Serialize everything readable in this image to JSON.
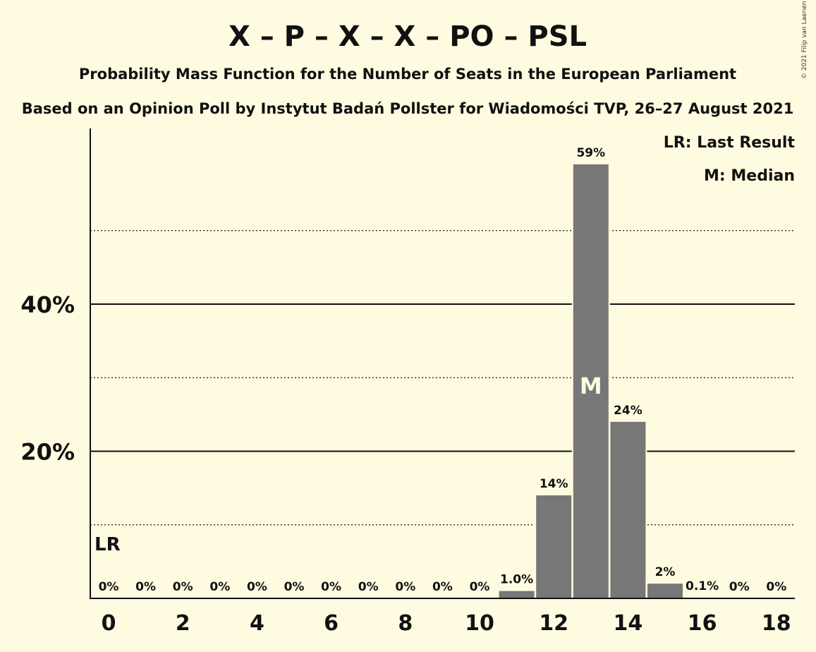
{
  "chart_data": {
    "type": "bar",
    "title": "X – P – X – X – PO – PSL",
    "subtitle": "Probability Mass Function for the Number of Seats in the European Parliament",
    "subtitle2": "Based on an Opinion Poll by Instytut Badań Pollster for Wiadomości TVP, 26–27 August 2021",
    "copyright": "© 2021 Filip van Laenen",
    "legend": [
      "LR: Last Result",
      "M: Median"
    ],
    "legend_position": "top-right",
    "categories": [
      0,
      1,
      2,
      3,
      4,
      5,
      6,
      7,
      8,
      9,
      10,
      11,
      12,
      13,
      14,
      15,
      16,
      17,
      18
    ],
    "values": [
      0,
      0,
      0,
      0,
      0,
      0,
      0,
      0,
      0,
      0,
      0,
      1.0,
      14,
      59,
      24,
      2,
      0.1,
      0,
      0
    ],
    "value_labels": [
      "0%",
      "0%",
      "0%",
      "0%",
      "0%",
      "0%",
      "0%",
      "0%",
      "0%",
      "0%",
      "0%",
      "1.0%",
      "14%",
      "59%",
      "24%",
      "2%",
      "0.1%",
      "0%",
      "0%"
    ],
    "x_tick_labels": [
      "0",
      "2",
      "4",
      "6",
      "8",
      "10",
      "12",
      "14",
      "16",
      "18"
    ],
    "x_tick_values": [
      0,
      2,
      4,
      6,
      8,
      10,
      12,
      14,
      16,
      18
    ],
    "y_tick_labels": [
      "20%",
      "40%"
    ],
    "y_tick_values": [
      20,
      40
    ],
    "y_gridlines_major": [
      20,
      40
    ],
    "y_gridlines_minor": [
      10,
      30,
      50
    ],
    "ylim": [
      0,
      64
    ],
    "last_result_seats": 0,
    "last_result_label": "LR",
    "median_seats": 13,
    "median_label": "M",
    "bar_color": "#777777"
  }
}
